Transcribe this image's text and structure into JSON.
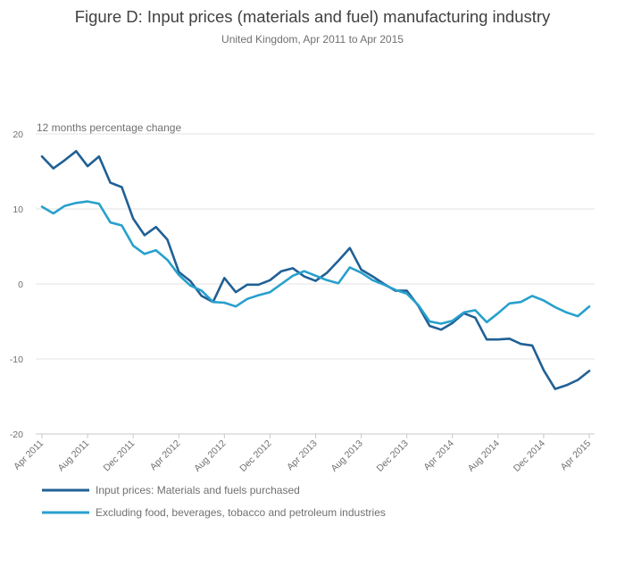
{
  "chart_data": {
    "type": "line",
    "title": "Figure D: Input prices (materials and fuel) manufacturing industry",
    "subtitle": "United Kingdom, Apr 2011 to Apr 2015",
    "ylabel": "12 months percentage change",
    "xlabel": "",
    "ylim": [
      -20,
      20
    ],
    "yticks": [
      "20",
      "10",
      "0",
      "-10",
      "-20"
    ],
    "ytick_values": [
      20,
      10,
      0,
      -10,
      -20
    ],
    "xtick_labels": [
      "Apr 2011",
      "Aug 2011",
      "Dec 2011",
      "Apr 2012",
      "Aug 2012",
      "Dec 2012",
      "Apr 2013",
      "Aug 2013",
      "Dec 2013",
      "Apr 2014",
      "Aug 2014",
      "Dec 2014",
      "Apr 2015"
    ],
    "xtick_index": [
      0,
      4,
      8,
      12,
      16,
      20,
      24,
      28,
      32,
      36,
      40,
      44,
      48
    ],
    "legend_position": "bottom-left",
    "series": [
      {
        "name": "Input prices: Materials and fuels purchased",
        "color": "#206095",
        "values": [
          17.0,
          15.4,
          16.5,
          17.7,
          15.7,
          17.0,
          13.5,
          12.9,
          8.7,
          6.5,
          7.6,
          5.9,
          1.6,
          0.4,
          -1.6,
          -2.4,
          0.8,
          -1.1,
          -0.1,
          -0.1,
          0.5,
          1.7,
          2.1,
          1.0,
          0.4,
          1.5,
          3.1,
          4.8,
          1.9,
          1.0,
          0.0,
          -0.9,
          -0.9,
          -2.9,
          -5.6,
          -6.1,
          -5.2,
          -3.9,
          -4.5,
          -7.4,
          -7.4,
          -7.3,
          -8.0,
          -8.2,
          -11.5,
          -14.0,
          -13.5,
          -12.8,
          -11.6
        ]
      },
      {
        "name": "Excluding food, beverages, tobacco and petroleum industries",
        "color": "#27a0cc",
        "values": [
          10.3,
          9.4,
          10.4,
          10.8,
          11.0,
          10.7,
          8.2,
          7.8,
          5.1,
          4.0,
          4.5,
          3.2,
          1.2,
          -0.2,
          -0.9,
          -2.4,
          -2.5,
          -3.0,
          -2.0,
          -1.5,
          -1.1,
          0.0,
          1.1,
          1.7,
          1.1,
          0.5,
          0.1,
          2.2,
          1.5,
          0.5,
          -0.1,
          -0.8,
          -1.3,
          -2.8,
          -5.0,
          -5.3,
          -4.9,
          -3.8,
          -3.5,
          -5.1,
          -3.9,
          -2.6,
          -2.4,
          -1.6,
          -2.2,
          -3.1,
          -3.8,
          -4.3,
          -3.0
        ]
      }
    ]
  }
}
